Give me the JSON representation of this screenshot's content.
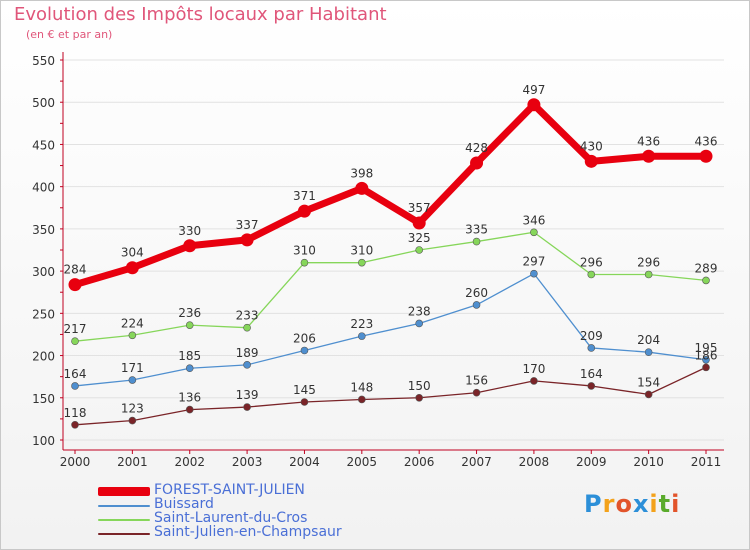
{
  "chart_data": {
    "type": "line",
    "title": "Evolution des Impôts locaux par Habitant",
    "subtitle": "(en € et par an)",
    "categories": [
      "2000",
      "2001",
      "2002",
      "2003",
      "2004",
      "2005",
      "2006",
      "2007",
      "2008",
      "2009",
      "2010",
      "2011"
    ],
    "ylim": [
      100,
      550
    ],
    "yticks": [
      100,
      150,
      200,
      250,
      300,
      350,
      400,
      450,
      500,
      550
    ],
    "grid": "horizontal",
    "legend_position": "bottom-left",
    "series": [
      {
        "name": "FOREST-SAINT-JULIEN",
        "color": "#e8000f",
        "values": [
          284,
          304,
          330,
          337,
          371,
          398,
          357,
          428,
          497,
          430,
          436,
          436
        ]
      },
      {
        "name": "Buissard",
        "color": "#4f8fcf",
        "values": [
          164,
          171,
          185,
          189,
          206,
          223,
          238,
          260,
          297,
          209,
          204,
          195
        ]
      },
      {
        "name": "Saint-Laurent-du-Cros",
        "color": "#86d65a",
        "values": [
          217,
          224,
          236,
          233,
          310,
          310,
          325,
          335,
          346,
          296,
          296,
          289
        ]
      },
      {
        "name": "Saint-Julien-en-Champsaur",
        "color": "#7a2428",
        "values": [
          118,
          123,
          136,
          139,
          145,
          148,
          150,
          156,
          170,
          164,
          154,
          186
        ]
      }
    ]
  },
  "logo": {
    "letters": [
      "P",
      "r",
      "o",
      "x",
      "i",
      "t",
      "i"
    ],
    "colors": [
      "#2c8fd8",
      "#f3a21b",
      "#e2542b",
      "#2c8fd8",
      "#f3a21b",
      "#5aab2c",
      "#e2542b"
    ]
  }
}
